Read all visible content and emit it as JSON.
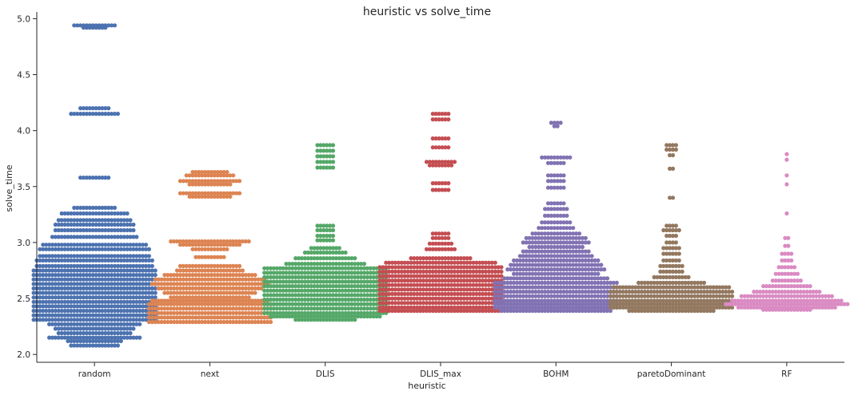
{
  "chart_data": {
    "type": "swarm",
    "title": "heuristic vs solve_time",
    "xlabel": "heuristic",
    "ylabel": "solve_time",
    "categories": [
      "random",
      "next",
      "DLIS",
      "DLIS_max",
      "BOHM",
      "paretoDominant",
      "RF"
    ],
    "ylim": [
      1.93,
      5.06
    ],
    "yticks": [
      "2.0",
      "2.5",
      "3.0",
      "3.5",
      "4.0",
      "4.5",
      "5.0"
    ],
    "grid": false,
    "legend": "none",
    "colors": [
      "#4c72b0",
      "#dd8452",
      "#55a868",
      "#c44e52",
      "#8172b3",
      "#937860",
      "#da8bc3"
    ],
    "series": [
      {
        "category": "random",
        "levels": [
          {
            "y": 4.94,
            "count": 14
          },
          {
            "y": 4.92,
            "count": 8
          },
          {
            "y": 4.2,
            "count": 10
          },
          {
            "y": 4.15,
            "count": 16
          },
          {
            "y": 3.58,
            "count": 10
          },
          {
            "y": 3.31,
            "count": 14
          },
          {
            "y": 3.26,
            "count": 22
          },
          {
            "y": 3.2,
            "count": 24
          },
          {
            "y": 3.16,
            "count": 26
          },
          {
            "y": 3.11,
            "count": 26
          },
          {
            "y": 3.05,
            "count": 28
          },
          {
            "y": 2.98,
            "count": 34
          },
          {
            "y": 2.94,
            "count": 36
          },
          {
            "y": 2.88,
            "count": 36
          },
          {
            "y": 2.84,
            "count": 38
          },
          {
            "y": 2.79,
            "count": 38
          },
          {
            "y": 2.75,
            "count": 40
          },
          {
            "y": 2.71,
            "count": 40
          },
          {
            "y": 2.67,
            "count": 40
          },
          {
            "y": 2.63,
            "count": 40
          },
          {
            "y": 2.59,
            "count": 40
          },
          {
            "y": 2.55,
            "count": 40
          },
          {
            "y": 2.51,
            "count": 40
          },
          {
            "y": 2.47,
            "count": 40
          },
          {
            "y": 2.43,
            "count": 40
          },
          {
            "y": 2.39,
            "count": 40
          },
          {
            "y": 2.35,
            "count": 40
          },
          {
            "y": 2.31,
            "count": 40
          },
          {
            "y": 2.27,
            "count": 30
          },
          {
            "y": 2.23,
            "count": 26
          },
          {
            "y": 2.19,
            "count": 24
          },
          {
            "y": 2.15,
            "count": 30
          },
          {
            "y": 2.12,
            "count": 18
          },
          {
            "y": 2.08,
            "count": 16
          }
        ]
      },
      {
        "category": "next",
        "levels": [
          {
            "y": 3.63,
            "count": 12
          },
          {
            "y": 3.6,
            "count": 16
          },
          {
            "y": 3.55,
            "count": 20
          },
          {
            "y": 3.52,
            "count": 14
          },
          {
            "y": 3.44,
            "count": 20
          },
          {
            "y": 3.41,
            "count": 14
          },
          {
            "y": 3.01,
            "count": 26
          },
          {
            "y": 2.98,
            "count": 20
          },
          {
            "y": 2.94,
            "count": 12
          },
          {
            "y": 2.87,
            "count": 10
          },
          {
            "y": 2.79,
            "count": 20
          },
          {
            "y": 2.75,
            "count": 22
          },
          {
            "y": 2.71,
            "count": 30
          },
          {
            "y": 2.67,
            "count": 36
          },
          {
            "y": 2.63,
            "count": 38
          },
          {
            "y": 2.59,
            "count": 34
          },
          {
            "y": 2.55,
            "count": 30
          },
          {
            "y": 2.51,
            "count": 26
          },
          {
            "y": 2.48,
            "count": 38
          },
          {
            "y": 2.45,
            "count": 40
          },
          {
            "y": 2.41,
            "count": 40
          },
          {
            "y": 2.37,
            "count": 40
          },
          {
            "y": 2.33,
            "count": 40
          },
          {
            "y": 2.29,
            "count": 40
          }
        ]
      },
      {
        "category": "DLIS",
        "levels": [
          {
            "y": 3.87,
            "count": 6
          },
          {
            "y": 3.82,
            "count": 6
          },
          {
            "y": 3.77,
            "count": 6
          },
          {
            "y": 3.72,
            "count": 6
          },
          {
            "y": 3.67,
            "count": 6
          },
          {
            "y": 3.15,
            "count": 6
          },
          {
            "y": 3.11,
            "count": 6
          },
          {
            "y": 3.06,
            "count": 6
          },
          {
            "y": 3.02,
            "count": 6
          },
          {
            "y": 2.95,
            "count": 10
          },
          {
            "y": 2.91,
            "count": 14
          },
          {
            "y": 2.86,
            "count": 20
          },
          {
            "y": 2.81,
            "count": 26
          },
          {
            "y": 2.77,
            "count": 40
          },
          {
            "y": 2.73,
            "count": 40
          },
          {
            "y": 2.69,
            "count": 40
          },
          {
            "y": 2.65,
            "count": 40
          },
          {
            "y": 2.61,
            "count": 40
          },
          {
            "y": 2.57,
            "count": 40
          },
          {
            "y": 2.53,
            "count": 40
          },
          {
            "y": 2.49,
            "count": 40
          },
          {
            "y": 2.45,
            "count": 40
          },
          {
            "y": 2.41,
            "count": 40
          },
          {
            "y": 2.37,
            "count": 40
          },
          {
            "y": 2.34,
            "count": 36
          },
          {
            "y": 2.31,
            "count": 20
          }
        ]
      },
      {
        "category": "DLIS_max",
        "levels": [
          {
            "y": 4.15,
            "count": 6
          },
          {
            "y": 4.1,
            "count": 6
          },
          {
            "y": 3.93,
            "count": 6
          },
          {
            "y": 3.85,
            "count": 6
          },
          {
            "y": 3.72,
            "count": 10
          },
          {
            "y": 3.69,
            "count": 8
          },
          {
            "y": 3.53,
            "count": 6
          },
          {
            "y": 3.47,
            "count": 6
          },
          {
            "y": 3.08,
            "count": 6
          },
          {
            "y": 3.04,
            "count": 6
          },
          {
            "y": 2.99,
            "count": 8
          },
          {
            "y": 2.94,
            "count": 10
          },
          {
            "y": 2.86,
            "count": 20
          },
          {
            "y": 2.82,
            "count": 36
          },
          {
            "y": 2.78,
            "count": 40
          },
          {
            "y": 2.74,
            "count": 40
          },
          {
            "y": 2.7,
            "count": 40
          },
          {
            "y": 2.66,
            "count": 40
          },
          {
            "y": 2.62,
            "count": 40
          },
          {
            "y": 2.58,
            "count": 40
          },
          {
            "y": 2.54,
            "count": 40
          },
          {
            "y": 2.5,
            "count": 40
          },
          {
            "y": 2.46,
            "count": 40
          },
          {
            "y": 2.42,
            "count": 40
          },
          {
            "y": 2.39,
            "count": 40
          }
        ]
      },
      {
        "category": "BOHM",
        "levels": [
          {
            "y": 4.07,
            "count": 4
          },
          {
            "y": 4.04,
            "count": 2
          },
          {
            "y": 3.76,
            "count": 10
          },
          {
            "y": 3.71,
            "count": 6
          },
          {
            "y": 3.6,
            "count": 6
          },
          {
            "y": 3.55,
            "count": 6
          },
          {
            "y": 3.49,
            "count": 6
          },
          {
            "y": 3.35,
            "count": 6
          },
          {
            "y": 3.3,
            "count": 8
          },
          {
            "y": 3.24,
            "count": 8
          },
          {
            "y": 3.18,
            "count": 10
          },
          {
            "y": 3.13,
            "count": 12
          },
          {
            "y": 3.08,
            "count": 16
          },
          {
            "y": 3.04,
            "count": 20
          },
          {
            "y": 3.0,
            "count": 22
          },
          {
            "y": 2.96,
            "count": 18
          },
          {
            "y": 2.92,
            "count": 22
          },
          {
            "y": 2.88,
            "count": 24
          },
          {
            "y": 2.84,
            "count": 28
          },
          {
            "y": 2.8,
            "count": 30
          },
          {
            "y": 2.76,
            "count": 32
          },
          {
            "y": 2.72,
            "count": 28
          },
          {
            "y": 2.68,
            "count": 34
          },
          {
            "y": 2.64,
            "count": 40
          },
          {
            "y": 2.6,
            "count": 40
          },
          {
            "y": 2.56,
            "count": 40
          },
          {
            "y": 2.52,
            "count": 40
          },
          {
            "y": 2.48,
            "count": 40
          },
          {
            "y": 2.45,
            "count": 40
          },
          {
            "y": 2.42,
            "count": 40
          },
          {
            "y": 2.39,
            "count": 36
          }
        ]
      },
      {
        "category": "paretoDominant",
        "levels": [
          {
            "y": 3.87,
            "count": 4
          },
          {
            "y": 3.83,
            "count": 4
          },
          {
            "y": 3.78,
            "count": 2
          },
          {
            "y": 3.66,
            "count": 2
          },
          {
            "y": 3.4,
            "count": 2
          },
          {
            "y": 3.15,
            "count": 4
          },
          {
            "y": 3.11,
            "count": 6
          },
          {
            "y": 3.06,
            "count": 4
          },
          {
            "y": 3.0,
            "count": 4
          },
          {
            "y": 2.95,
            "count": 6
          },
          {
            "y": 2.9,
            "count": 6
          },
          {
            "y": 2.84,
            "count": 6
          },
          {
            "y": 2.79,
            "count": 8
          },
          {
            "y": 2.74,
            "count": 8
          },
          {
            "y": 2.69,
            "count": 12
          },
          {
            "y": 2.64,
            "count": 22
          },
          {
            "y": 2.6,
            "count": 38
          },
          {
            "y": 2.56,
            "count": 40
          },
          {
            "y": 2.52,
            "count": 40
          },
          {
            "y": 2.48,
            "count": 40
          },
          {
            "y": 2.45,
            "count": 40
          },
          {
            "y": 2.42,
            "count": 40
          },
          {
            "y": 2.39,
            "count": 28
          }
        ]
      },
      {
        "category": "RF",
        "levels": [
          {
            "y": 3.79,
            "count": 1
          },
          {
            "y": 3.74,
            "count": 1
          },
          {
            "y": 3.6,
            "count": 1
          },
          {
            "y": 3.52,
            "count": 1
          },
          {
            "y": 3.26,
            "count": 1
          },
          {
            "y": 3.04,
            "count": 2
          },
          {
            "y": 2.97,
            "count": 2
          },
          {
            "y": 2.9,
            "count": 4
          },
          {
            "y": 2.84,
            "count": 4
          },
          {
            "y": 2.78,
            "count": 6
          },
          {
            "y": 2.72,
            "count": 8
          },
          {
            "y": 2.66,
            "count": 10
          },
          {
            "y": 2.61,
            "count": 16
          },
          {
            "y": 2.56,
            "count": 22
          },
          {
            "y": 2.52,
            "count": 30
          },
          {
            "y": 2.48,
            "count": 36
          },
          {
            "y": 2.45,
            "count": 40
          },
          {
            "y": 2.42,
            "count": 32
          },
          {
            "y": 2.4,
            "count": 16
          }
        ]
      }
    ]
  }
}
